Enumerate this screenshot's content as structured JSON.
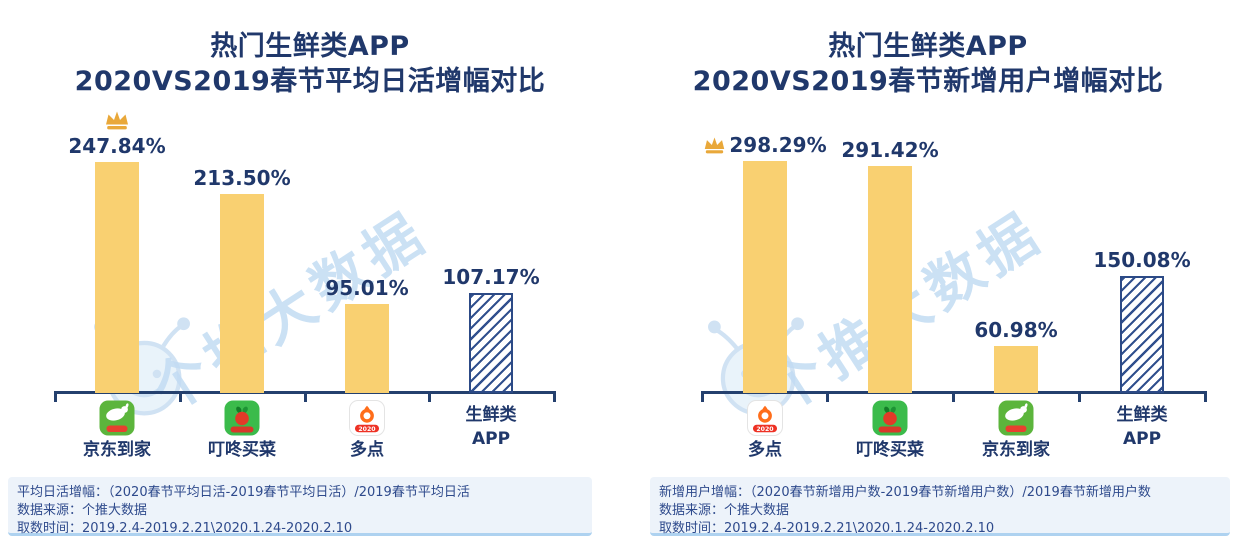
{
  "watermark": {
    "text": "个推大数据"
  },
  "colors": {
    "navy_text": "#20386b",
    "bar_yellow": "#f9d071",
    "crown_gold": "#e9a83a",
    "hatch_navy": "#31508e",
    "axis_navy": "#24406e",
    "watermark_blue": "#c3dcf3",
    "footnote_bg": "#edf3fa",
    "footnote_text": "#2e4a8c"
  },
  "charts": [
    {
      "title_line1": "热门生鲜类APP",
      "title_line2": "2020VS2019春节平均日活增幅对比",
      "footnote_line1": "平均日活增幅：（2020春节平均日活-2019春节平均日活）/2019春节平均日活",
      "footnote_line2": "数据来源：个推大数据",
      "footnote_line3": "取数时间：2019.2.4-2019.2.21\\2020.1.24-2020.2.10"
    },
    {
      "title_line1": "热门生鲜类APP",
      "title_line2": "2020VS2019春节新增用户增幅对比",
      "footnote_line1": "新增用户增幅：（2020春节新增用户数-2019春节新增用户数）/2019春节新增用户数",
      "footnote_line2": "数据来源：个推大数据",
      "footnote_line3": "取数时间：2019.2.4-2019.2.21\\2020.1.24-2020.2.10"
    }
  ],
  "chart_data": [
    {
      "type": "bar",
      "title": "热门生鲜类APP 2020VS2019春节平均日活增幅对比",
      "categories": [
        "京东到家",
        "叮咚买菜",
        "多点",
        "生鲜类APP"
      ],
      "category_label_lines": [
        [
          "京东到家"
        ],
        [
          "叮咚买菜"
        ],
        [
          "多点"
        ],
        [
          "生鲜类",
          "APP"
        ]
      ],
      "values": [
        247.84,
        213.5,
        95.01,
        107.17
      ],
      "value_labels": [
        "247.84%",
        "213.50%",
        "95.01%",
        "107.17%"
      ],
      "unit": "%",
      "crown_index": 0,
      "hatched_index": 3,
      "icons": [
        "jddj",
        "dingdong",
        "duodian",
        null
      ],
      "duodian_badge": "2020",
      "ylim": [
        0,
        260
      ],
      "grid": false,
      "legend": false
    },
    {
      "type": "bar",
      "title": "热门生鲜类APP 2020VS2019春节新增用户增幅对比",
      "categories": [
        "多点",
        "叮咚买菜",
        "京东到家",
        "生鲜类APP"
      ],
      "category_label_lines": [
        [
          "多点"
        ],
        [
          "叮咚买菜"
        ],
        [
          "京东到家"
        ],
        [
          "生鲜类",
          "APP"
        ]
      ],
      "values": [
        298.29,
        291.42,
        60.98,
        150.08
      ],
      "value_labels": [
        "298.29%",
        "291.42%",
        "60.98%",
        "150.08%"
      ],
      "unit": "%",
      "crown_index": 0,
      "hatched_index": 3,
      "icons": [
        "duodian",
        "dingdong",
        "jddj",
        null
      ],
      "duodian_badge": "2020",
      "ylim": [
        0,
        310
      ],
      "grid": false,
      "legend": false
    }
  ]
}
